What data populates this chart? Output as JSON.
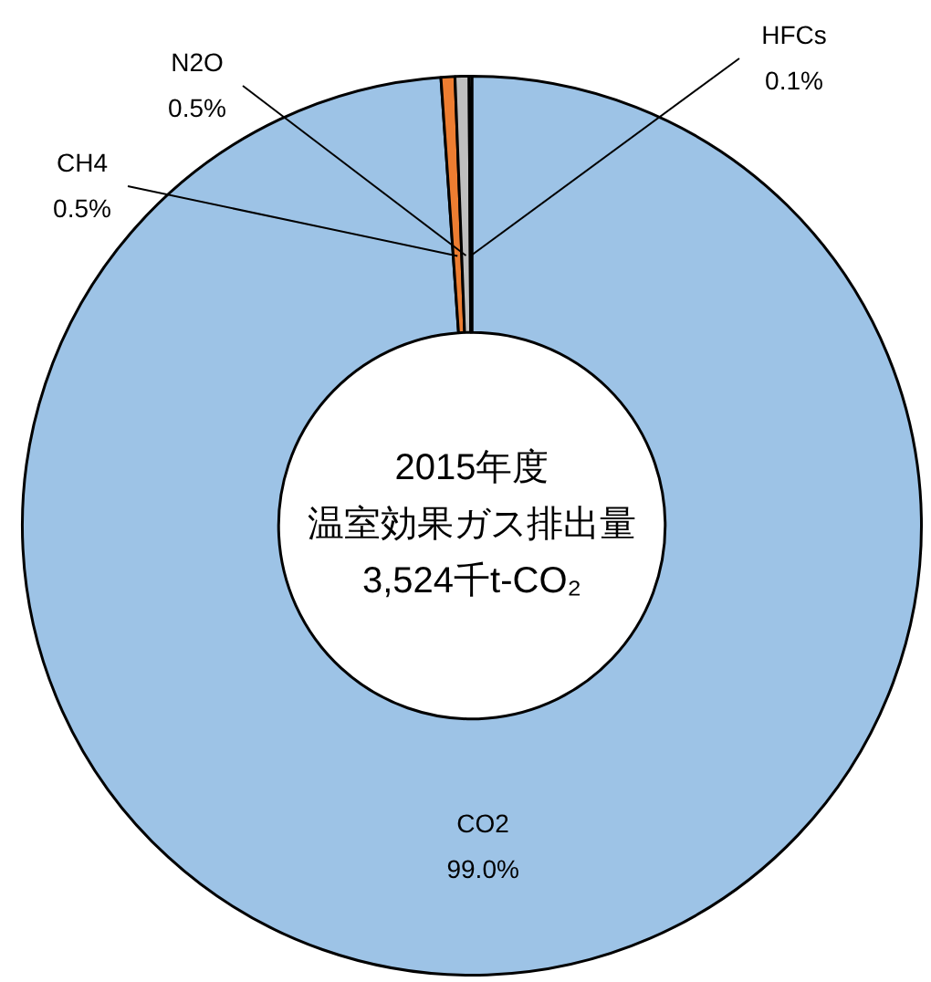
{
  "chart_data": {
    "type": "donut",
    "categories": [
      "CO2",
      "CH4",
      "N2O",
      "HFCs"
    ],
    "values": [
      99.0,
      0.5,
      0.5,
      0.1
    ],
    "colors": [
      "#9dc3e6",
      "#ed7d31",
      "#bfbfbf",
      "#ffffff"
    ],
    "value_labels": [
      "99.0%",
      "0.5%",
      "0.5%",
      "0.1%"
    ],
    "annotations": [
      "2015年度",
      "温室効果ガス排出量",
      "3,524千t-CO₂"
    ],
    "legend": false
  }
}
